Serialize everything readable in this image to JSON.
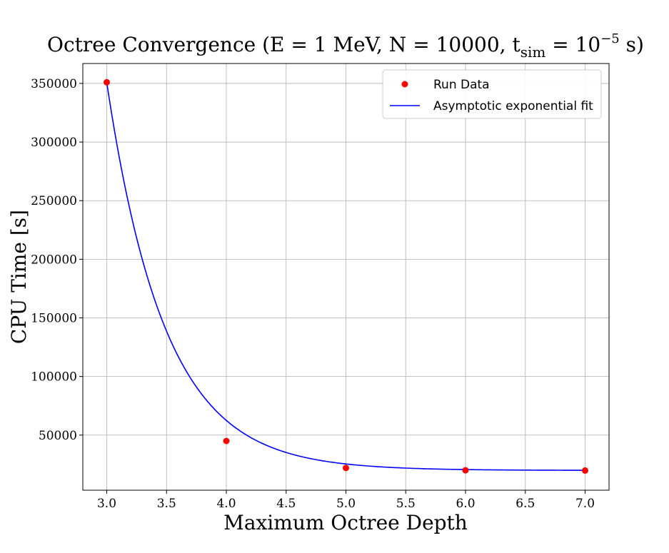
{
  "chart_data": {
    "type": "scatter",
    "title": {
      "prefix": "Octree Convergence (E = 1 MeV, N = 10000, t",
      "subscript": "sim",
      "middle": " = 10",
      "superscript": "−5",
      "suffix": " s)"
    },
    "xlabel": "Maximum Octree Depth",
    "ylabel": "CPU Time [s]",
    "xlim": [
      2.8,
      7.2
    ],
    "ylim": [
      3000,
      367000
    ],
    "xticks": [
      "3.0",
      "3.5",
      "4.0",
      "4.5",
      "5.0",
      "5.5",
      "6.0",
      "6.5",
      "7.0"
    ],
    "yticks": [
      "50000",
      "100000",
      "150000",
      "200000",
      "250000",
      "300000",
      "350000"
    ],
    "grid": true,
    "legend_position": "top-right",
    "series": [
      {
        "name": "Run Data",
        "kind": "scatter",
        "color": "#ff0000",
        "x": [
          3,
          4,
          5,
          6,
          7
        ],
        "y": [
          351000,
          45000,
          22000,
          20000,
          19800
        ]
      },
      {
        "name": "Asymptotic exponential fit",
        "kind": "line",
        "color": "#0000ff",
        "fit": {
          "a": 331000,
          "b": 2.05,
          "c": 19900,
          "x0": 3
        }
      }
    ]
  }
}
